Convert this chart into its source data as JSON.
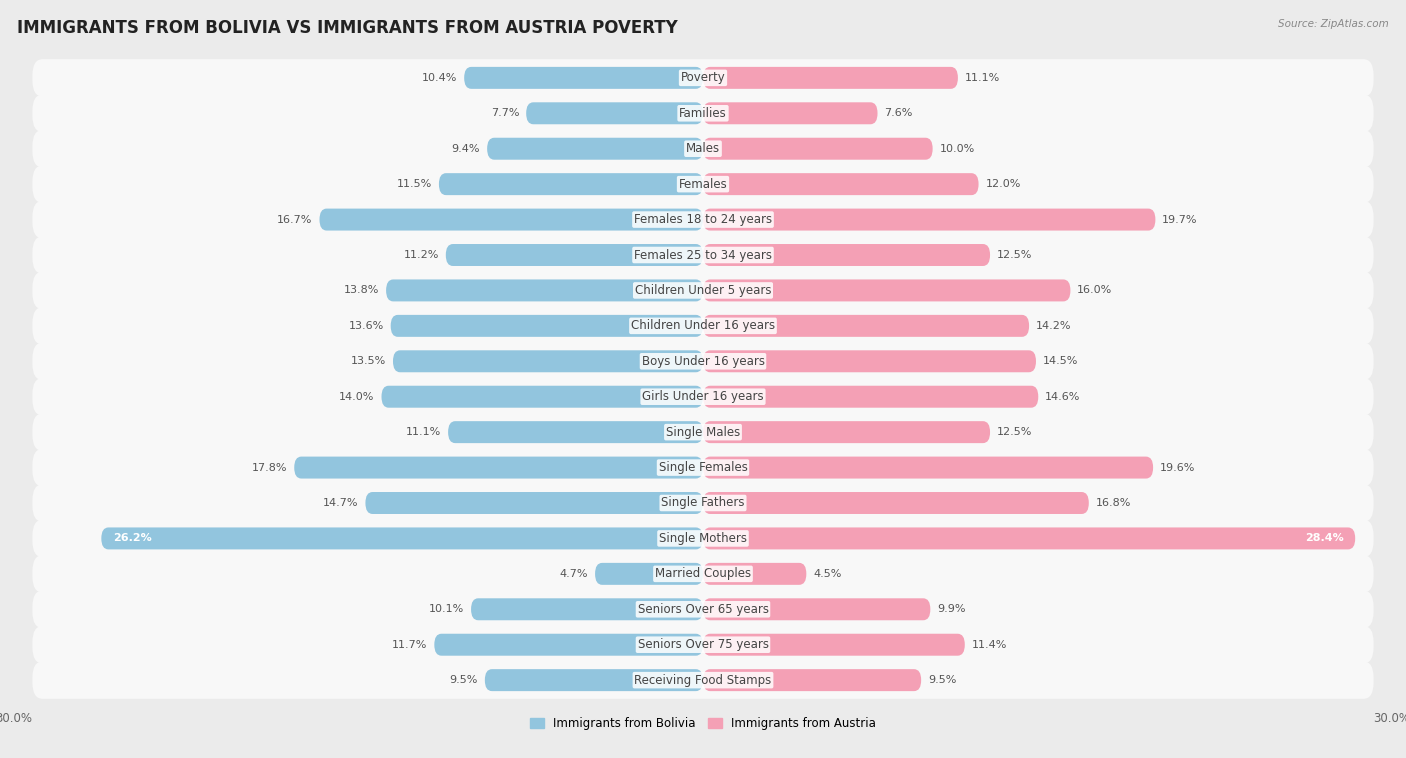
{
  "title": "IMMIGRANTS FROM BOLIVIA VS IMMIGRANTS FROM AUSTRIA POVERTY",
  "source": "Source: ZipAtlas.com",
  "categories": [
    "Poverty",
    "Families",
    "Males",
    "Females",
    "Females 18 to 24 years",
    "Females 25 to 34 years",
    "Children Under 5 years",
    "Children Under 16 years",
    "Boys Under 16 years",
    "Girls Under 16 years",
    "Single Males",
    "Single Females",
    "Single Fathers",
    "Single Mothers",
    "Married Couples",
    "Seniors Over 65 years",
    "Seniors Over 75 years",
    "Receiving Food Stamps"
  ],
  "bolivia_values": [
    10.4,
    7.7,
    9.4,
    11.5,
    16.7,
    11.2,
    13.8,
    13.6,
    13.5,
    14.0,
    11.1,
    17.8,
    14.7,
    26.2,
    4.7,
    10.1,
    11.7,
    9.5
  ],
  "austria_values": [
    11.1,
    7.6,
    10.0,
    12.0,
    19.7,
    12.5,
    16.0,
    14.2,
    14.5,
    14.6,
    12.5,
    19.6,
    16.8,
    28.4,
    4.5,
    9.9,
    11.4,
    9.5
  ],
  "bolivia_color": "#92c5de",
  "austria_color": "#f4a0b5",
  "bolivia_label": "Immigrants from Bolivia",
  "austria_label": "Immigrants from Austria",
  "axis_max": 30.0,
  "background_color": "#ebebeb",
  "row_bg_color": "#f8f8f8",
  "label_fontsize": 8.5,
  "title_fontsize": 12,
  "value_fontsize": 8,
  "source_fontsize": 7.5,
  "legend_fontsize": 8.5
}
